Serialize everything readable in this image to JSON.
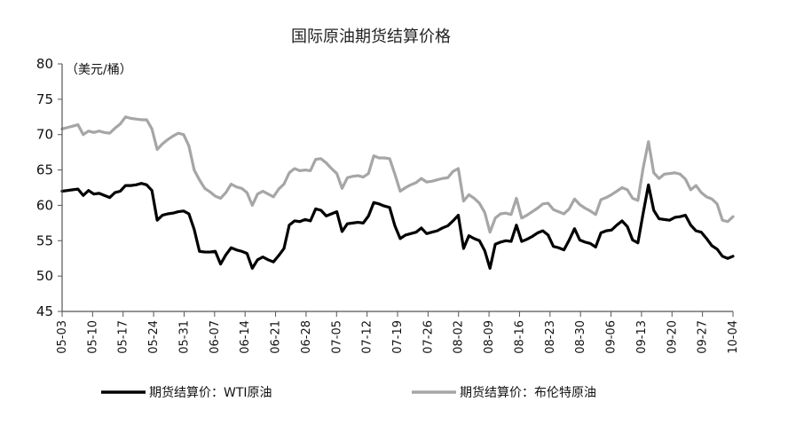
{
  "chart_data": {
    "type": "line",
    "title": "国际原油期货结算价格",
    "unit_label": "（美元/桶）",
    "ylim": [
      45,
      80
    ],
    "yticks": [
      45,
      50,
      55,
      60,
      65,
      70,
      75,
      80
    ],
    "xticks": [
      "05-03",
      "05-10",
      "05-17",
      "05-24",
      "05-31",
      "06-07",
      "06-14",
      "06-21",
      "06-28",
      "07-05",
      "07-12",
      "07-19",
      "07-26",
      "08-02",
      "08-09",
      "08-16",
      "08-23",
      "08-30",
      "09-06",
      "09-13",
      "09-20",
      "09-27",
      "10-04"
    ],
    "series": [
      {
        "name": "期货结算价：WTI原油",
        "color": "#000000",
        "values": [
          62.0,
          62.1,
          62.2,
          62.3,
          61.4,
          62.1,
          61.6,
          61.7,
          61.4,
          61.1,
          61.8,
          62.0,
          62.8,
          62.8,
          62.9,
          63.1,
          62.9,
          62.1,
          57.9,
          58.6,
          58.8,
          58.9,
          59.1,
          59.2,
          58.8,
          56.6,
          53.5,
          53.4,
          53.4,
          53.5,
          51.7,
          53.0,
          54.0,
          53.7,
          53.5,
          53.2,
          51.1,
          52.3,
          52.7,
          52.3,
          52.0,
          52.9,
          53.9,
          57.2,
          57.8,
          57.7,
          58.0,
          57.8,
          59.5,
          59.3,
          58.5,
          58.8,
          59.1,
          56.3,
          57.4,
          57.5,
          57.6,
          57.5,
          58.5,
          60.4,
          60.2,
          59.9,
          59.7,
          57.1,
          55.3,
          55.8,
          56.0,
          56.2,
          56.8,
          56.0,
          56.2,
          56.4,
          56.8,
          57.1,
          57.8,
          58.6,
          53.9,
          55.7,
          55.3,
          55.0,
          53.6,
          51.1,
          54.5,
          54.8,
          55.0,
          54.9,
          57.2,
          54.9,
          55.2,
          55.6,
          56.1,
          56.4,
          55.8,
          54.2,
          54.0,
          53.7,
          55.1,
          56.7,
          55.1,
          54.8,
          54.6,
          54.1,
          56.1,
          56.4,
          56.5,
          57.2,
          57.8,
          57.0,
          55.1,
          54.7,
          58.9,
          62.9,
          59.3,
          58.1,
          58.0,
          57.9,
          58.3,
          58.4,
          58.6,
          57.2,
          56.4,
          56.2,
          55.3,
          54.3,
          53.8,
          52.8,
          52.5,
          52.8
        ]
      },
      {
        "name": "期货结算价：布伦特原油",
        "color": "#a6a6a6",
        "values": [
          70.8,
          71.0,
          71.2,
          71.4,
          70.0,
          70.5,
          70.3,
          70.5,
          70.3,
          70.2,
          70.9,
          71.5,
          72.5,
          72.3,
          72.2,
          72.1,
          72.1,
          70.8,
          67.9,
          68.7,
          69.3,
          69.8,
          70.2,
          70.0,
          68.4,
          65.0,
          63.6,
          62.4,
          61.9,
          61.3,
          61.0,
          61.8,
          63.0,
          62.6,
          62.4,
          61.8,
          60.0,
          61.6,
          62.0,
          61.6,
          61.2,
          62.3,
          63.0,
          64.6,
          65.2,
          64.9,
          65.0,
          64.9,
          66.5,
          66.6,
          66.0,
          65.2,
          64.5,
          62.4,
          63.9,
          64.1,
          64.2,
          64.0,
          64.5,
          67.0,
          66.7,
          66.7,
          66.6,
          64.4,
          62.0,
          62.5,
          62.9,
          63.2,
          63.8,
          63.3,
          63.4,
          63.6,
          63.8,
          63.9,
          64.8,
          65.2,
          60.6,
          61.5,
          61.0,
          60.3,
          59.0,
          56.2,
          58.2,
          58.8,
          58.9,
          58.7,
          61.0,
          58.2,
          58.6,
          59.1,
          59.6,
          60.2,
          60.3,
          59.4,
          59.1,
          58.8,
          59.5,
          60.9,
          60.1,
          59.6,
          59.2,
          58.7,
          60.8,
          61.1,
          61.5,
          62.0,
          62.5,
          62.2,
          61.0,
          60.7,
          65.3,
          69.0,
          64.6,
          63.8,
          64.4,
          64.5,
          64.6,
          64.4,
          63.7,
          62.2,
          62.8,
          61.8,
          61.2,
          60.9,
          60.2,
          57.9,
          57.7,
          58.4
        ]
      }
    ],
    "legend_placement": "bottom"
  }
}
